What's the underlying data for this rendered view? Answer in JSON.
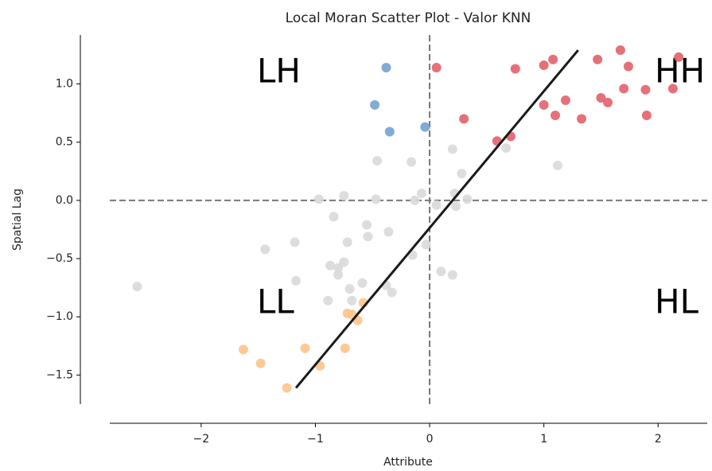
{
  "chart_data": {
    "type": "scatter",
    "title": "Local Moran Scatter Plot - Valor KNN",
    "x_label": "Attribute",
    "y_label": "Spatial Lag",
    "quadrant_labels": [
      "LH",
      "HH",
      "LL",
      "HL"
    ],
    "xlim": [
      -2.8,
      2.43
    ],
    "ylim": [
      -1.75,
      1.42
    ],
    "xticks": [
      {
        "value": -2,
        "label": "−2"
      },
      {
        "value": -1,
        "label": "−1"
      },
      0,
      1,
      2
    ],
    "yticks": [
      {
        "value": -1.5,
        "label": "−1.5"
      },
      {
        "value": -1.0,
        "label": "−1.0"
      },
      {
        "value": -0.5,
        "label": "−0.5"
      },
      {
        "value": 0,
        "label": "0.0"
      },
      0.5,
      {
        "value": 1.0,
        "label": "1.0"
      }
    ],
    "hline": 0,
    "vline": 0,
    "series": [
      {
        "color": "#d9d9d9",
        "x": [
          -2.56,
          -1.44,
          -1.18,
          -1.17,
          -0.97,
          -0.89,
          -0.87,
          -0.84,
          -0.8,
          -0.8,
          -0.75,
          -0.75,
          -0.72,
          -0.7,
          -0.68,
          -0.59,
          -0.55,
          -0.54,
          -0.47,
          -0.46,
          -0.36,
          -0.38,
          -0.33,
          -0.16,
          -0.15,
          -0.13,
          -0.07,
          -0.03,
          0.06,
          0.1,
          0.2,
          0.2,
          0.22,
          0.23,
          0.28,
          0.33,
          0.67,
          1.12
        ],
        "values": [
          -0.74,
          -0.42,
          -0.36,
          -0.69,
          0.01,
          -0.86,
          -0.56,
          -0.14,
          -0.58,
          -0.64,
          0.04,
          -0.53,
          -0.36,
          -0.76,
          -0.86,
          -0.71,
          -0.21,
          -0.31,
          0.01,
          0.34,
          -0.27,
          -0.73,
          -0.79,
          0.33,
          -0.47,
          0.0,
          0.06,
          -0.38,
          -0.04,
          -0.61,
          0.44,
          -0.64,
          0.06,
          -0.05,
          0.23,
          0.01,
          0.45,
          0.3
        ]
      },
      {
        "color": "#e36069",
        "x": [
          0.06,
          0.3,
          0.59,
          0.71,
          0.75,
          1.0,
          1.08,
          1.0,
          1.1,
          1.19,
          1.33,
          1.47,
          1.5,
          1.56,
          1.67,
          1.7,
          1.74,
          1.89,
          1.9,
          2.13,
          2.18
        ],
        "values": [
          1.14,
          0.7,
          0.51,
          0.55,
          1.13,
          1.16,
          1.21,
          0.82,
          0.73,
          0.86,
          0.7,
          1.21,
          0.88,
          0.84,
          1.29,
          0.96,
          1.15,
          0.95,
          0.73,
          0.96,
          1.23
        ]
      },
      {
        "color": "#72a3d0",
        "x": [
          -0.38,
          -0.48,
          -0.35,
          -0.04
        ],
        "values": [
          1.14,
          0.82,
          0.59,
          0.63
        ]
      },
      {
        "color": "#fdc48a",
        "x": [
          -1.63,
          -1.48,
          -1.25,
          -1.09,
          -0.96,
          -0.74,
          -0.72,
          -0.68,
          -0.63,
          -0.58
        ],
        "values": [
          -1.28,
          -1.4,
          -1.61,
          -1.27,
          -1.42,
          -1.27,
          -0.97,
          -0.98,
          -1.03,
          -0.88
        ]
      }
    ],
    "regression_line": {
      "color": "#1a1a1a",
      "x": [
        -1.17,
        1.3
      ],
      "values": [
        -1.61,
        1.29
      ]
    }
  }
}
